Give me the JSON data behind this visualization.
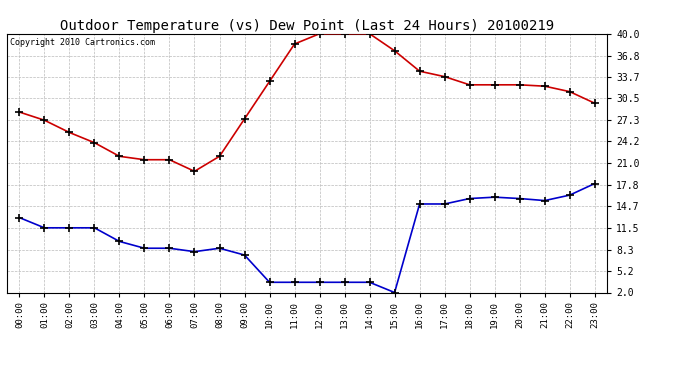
{
  "title": "Outdoor Temperature (vs) Dew Point (Last 24 Hours) 20100219",
  "copyright": "Copyright 2010 Cartronics.com",
  "x_labels": [
    "00:00",
    "01:00",
    "02:00",
    "03:00",
    "04:00",
    "05:00",
    "06:00",
    "07:00",
    "08:00",
    "09:00",
    "10:00",
    "11:00",
    "12:00",
    "13:00",
    "14:00",
    "15:00",
    "16:00",
    "17:00",
    "18:00",
    "19:00",
    "20:00",
    "21:00",
    "22:00",
    "23:00"
  ],
  "temp_data": [
    28.5,
    27.3,
    25.5,
    24.0,
    22.0,
    21.5,
    21.5,
    19.8,
    22.0,
    27.5,
    33.0,
    38.5,
    40.0,
    40.0,
    40.0,
    37.5,
    34.5,
    33.7,
    32.5,
    32.5,
    32.5,
    32.3,
    31.5,
    29.8
  ],
  "dew_data": [
    13.0,
    11.5,
    11.5,
    11.5,
    9.5,
    8.5,
    8.5,
    8.0,
    8.5,
    7.5,
    3.5,
    3.5,
    3.5,
    3.5,
    3.5,
    2.0,
    15.0,
    15.0,
    15.8,
    16.0,
    15.8,
    15.5,
    16.3,
    18.0
  ],
  "temp_color": "#cc0000",
  "dew_color": "#0000cc",
  "ylim": [
    2.0,
    40.0
  ],
  "yticks": [
    2.0,
    5.2,
    8.3,
    11.5,
    14.7,
    17.8,
    21.0,
    24.2,
    27.3,
    30.5,
    33.7,
    36.8,
    40.0
  ],
  "bg_color": "#ffffff",
  "grid_color": "#bbbbbb",
  "title_fontsize": 10,
  "marker": "+",
  "marker_size": 6,
  "marker_color": "#000000",
  "line_width": 1.2
}
